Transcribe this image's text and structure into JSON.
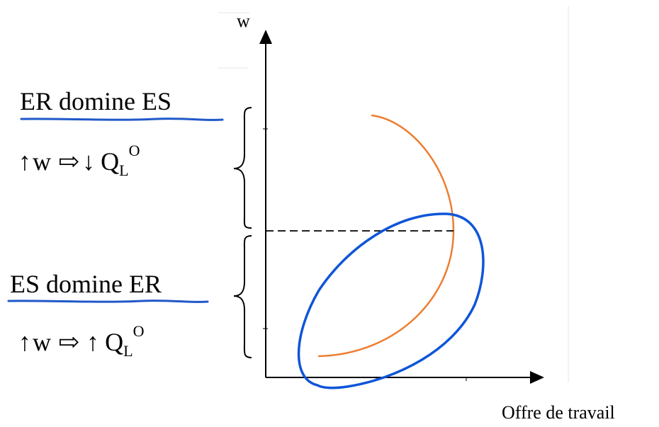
{
  "axes": {
    "y_label": "w",
    "x_label": "Offre de travail"
  },
  "upper_region": {
    "title": "ER domine ES",
    "effect": {
      "w_arrow": "↑",
      "w": "w",
      "implies": "⇨",
      "q_arrow": "↓",
      "q": "Q",
      "q_sub": "L",
      "q_sup": "O"
    }
  },
  "lower_region": {
    "title": "ES domine ER",
    "effect": {
      "w_arrow": "↑",
      "w": "w",
      "implies": "⇨",
      "q_arrow": "↑",
      "q": "Q",
      "q_sub": "L",
      "q_sup": "O"
    }
  },
  "colors": {
    "supply_curve": "#ED7D31",
    "highlight_annotation": "#0F55D8",
    "underline": "#1F58C8",
    "axis": "#000000"
  },
  "icons": {
    "brace_upper": "curly-brace-icon",
    "brace_lower": "curly-brace-icon",
    "arrow_y": "arrow-up-icon",
    "arrow_x": "arrow-right-icon"
  }
}
